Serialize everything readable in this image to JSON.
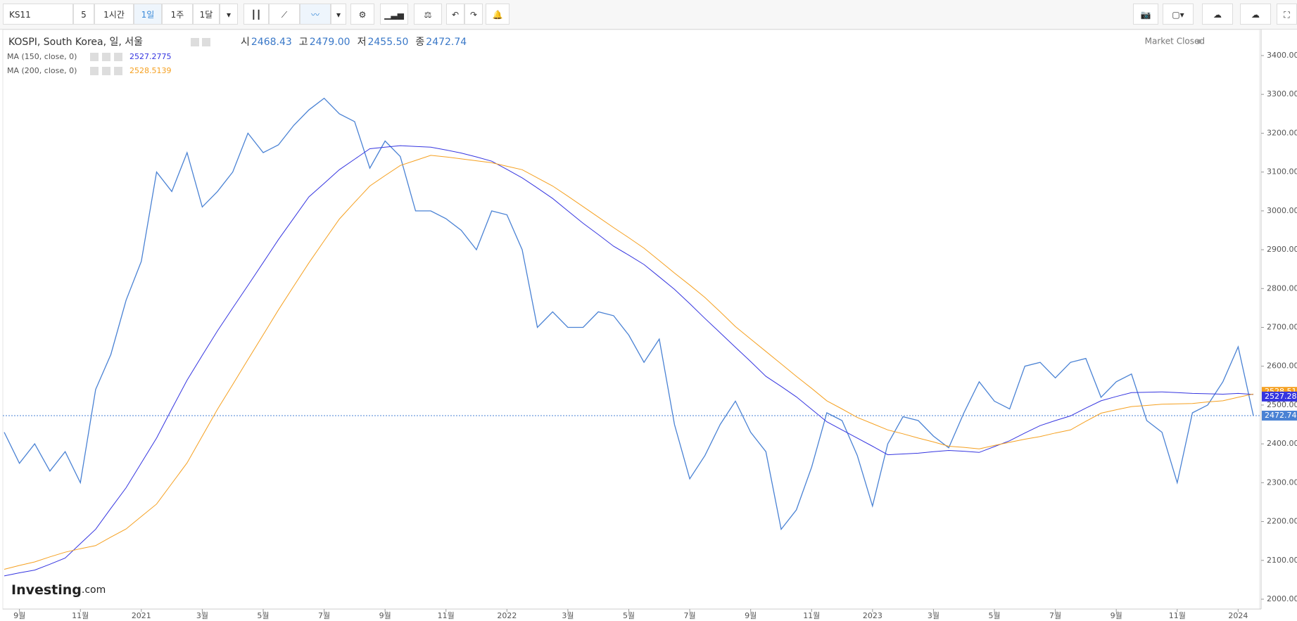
{
  "toolbar": {
    "symbol": "KS11",
    "intervals": [
      "5",
      "1시간",
      "1일",
      "1주",
      "1달"
    ]
  },
  "logo": {
    "main": "Investing",
    "suffix": ".com"
  },
  "status": "Market Closed",
  "chart_data": {
    "type": "line",
    "title": "KOSPI, South Korea, 일, 서울",
    "ohlc": [
      {
        "label": "시",
        "value": "2468.43"
      },
      {
        "label": "고",
        "value": "2479.00"
      },
      {
        "label": "저",
        "value": "2455.50"
      },
      {
        "label": "종",
        "value": "2472.74"
      }
    ],
    "indicators": [
      {
        "label": "MA (150, close, 0)",
        "value": 2527.2775,
        "color": "#3535e0"
      },
      {
        "label": "MA (200, close, 0)",
        "value": 2528.5139,
        "color": "#f5a020"
      }
    ],
    "xtick_labels": [
      "9월",
      "11월",
      "2021",
      "3월",
      "5월",
      "7월",
      "9월",
      "11월",
      "2022",
      "3월",
      "5월",
      "7월",
      "9월",
      "11월",
      "2023",
      "3월",
      "5월",
      "7월",
      "9월",
      "11월",
      "2024"
    ],
    "ylim": [
      2000,
      3400
    ],
    "yticks": [
      {
        "value": 2000,
        "label": "2000.00"
      },
      {
        "value": 2100,
        "label": "2100.00"
      },
      {
        "value": 2200,
        "label": "2200.00"
      },
      {
        "value": 2300,
        "label": "2300.00"
      },
      {
        "value": 2400,
        "label": "2400.00"
      },
      {
        "value": 2500,
        "label": "2500.00"
      },
      {
        "value": 2600,
        "label": "2600.00"
      },
      {
        "value": 2700,
        "label": "2700.00"
      },
      {
        "value": 2800,
        "label": "2800.00"
      },
      {
        "value": 2900,
        "label": "2900.00"
      },
      {
        "value": 3000,
        "label": "3000.00"
      },
      {
        "value": 3100,
        "label": "3100.00"
      },
      {
        "value": 3200,
        "label": "3200.00"
      },
      {
        "value": 3300,
        "label": "3300.00"
      },
      {
        "value": 3400,
        "label": "3400.00"
      }
    ],
    "series": [
      {
        "name": "KOSPI",
        "color": "#4a82d4",
        "values": [
          2430,
          2350,
          2400,
          2330,
          2380,
          2300,
          2540,
          2630,
          2770,
          2870,
          3100,
          3050,
          3150,
          3010,
          3050,
          3100,
          3200,
          3150,
          3170,
          3220,
          3260,
          3290,
          3250,
          3230,
          3110,
          3180,
          3140,
          3000,
          3000,
          2980,
          2950,
          2900,
          3000,
          2990,
          2900,
          2700,
          2740,
          2700,
          2700,
          2740,
          2730,
          2680,
          2610,
          2670,
          2450,
          2310,
          2370,
          2450,
          2510,
          2430,
          2380,
          2180,
          2230,
          2340,
          2480,
          2460,
          2370,
          2240,
          2400,
          2470,
          2460,
          2420,
          2390,
          2480,
          2560,
          2510,
          2490,
          2600,
          2610,
          2570,
          2610,
          2620,
          2520,
          2560,
          2580,
          2460,
          2430,
          2300,
          2480,
          2500,
          2560,
          2650,
          2472.74
        ]
      },
      {
        "name": "MA (150, close, 0)",
        "color": "#3535e0",
        "values": [
          2060,
          2068,
          2075,
          2090,
          2106,
          2143,
          2180,
          2234,
          2287,
          2351,
          2415,
          2490,
          2564,
          2628,
          2691,
          2750,
          2808,
          2867,
          2926,
          2981,
          3036,
          3071,
          3106,
          3133,
          3160,
          3164,
          3168,
          3166,
          3164,
          3157,
          3149,
          3139,
          3128,
          3107,
          3085,
          3059,
          3032,
          3000,
          2968,
          2939,
          2909,
          2886,
          2862,
          2830,
          2798,
          2761,
          2723,
          2686,
          2649,
          2612,
          2574,
          2548,
          2521,
          2489,
          2457,
          2436,
          2415,
          2394,
          2372,
          2374,
          2376,
          2380,
          2383,
          2381,
          2378,
          2393,
          2408,
          2428,
          2447,
          2460,
          2472,
          2492,
          2511,
          2522,
          2532,
          2533,
          2534,
          2532,
          2530,
          2529,
          2528,
          2530,
          2527.28
        ]
      },
      {
        "name": "MA (200, close, 0)",
        "color": "#f5a020",
        "values": [
          2077,
          2087,
          2096,
          2109,
          2121,
          2130,
          2138,
          2160,
          2181,
          2213,
          2245,
          2298,
          2351,
          2420,
          2489,
          2553,
          2617,
          2681,
          2745,
          2806,
          2866,
          2923,
          2979,
          3022,
          3064,
          3091,
          3117,
          3130,
          3143,
          3139,
          3134,
          3129,
          3124,
          3115,
          3106,
          3085,
          3064,
          3038,
          3011,
          2984,
          2957,
          2931,
          2904,
          2872,
          2840,
          2809,
          2777,
          2740,
          2702,
          2670,
          2638,
          2606,
          2574,
          2543,
          2511,
          2490,
          2468,
          2452,
          2436,
          2426,
          2415,
          2405,
          2394,
          2391,
          2387,
          2396,
          2404,
          2412,
          2419,
          2428,
          2436,
          2458,
          2479,
          2488,
          2496,
          2499,
          2502,
          2503,
          2504,
          2508,
          2511,
          2520,
          2528.51
        ]
      }
    ]
  }
}
